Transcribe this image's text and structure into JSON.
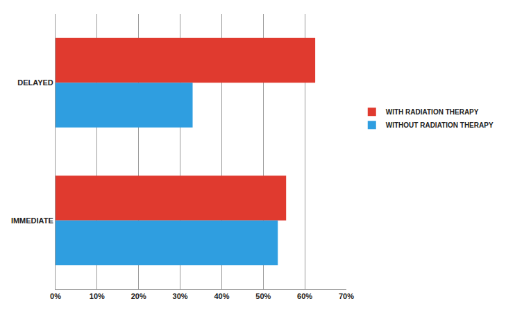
{
  "chart_data": {
    "type": "bar",
    "orientation": "horizontal",
    "categories": [
      "DELAYED",
      "IMMEDIATE"
    ],
    "series": [
      {
        "name": "WITH RADIATION THERAPY",
        "color": "#e03a2f",
        "values": [
          62.5,
          55.5
        ]
      },
      {
        "name": "WITHOUT RADIATION THERAPY",
        "color": "#2f9ee0",
        "values": [
          33,
          53.5
        ]
      }
    ],
    "xlim": [
      0,
      70
    ],
    "xticks": [
      {
        "value": 0,
        "label": "0%"
      },
      {
        "value": 10,
        "label": "10%"
      },
      {
        "value": 20,
        "label": "20%"
      },
      {
        "value": 30,
        "label": "30%"
      },
      {
        "value": 40,
        "label": "40%"
      },
      {
        "value": 50,
        "label": "50%"
      },
      {
        "value": 60,
        "label": "60%"
      },
      {
        "value": 70,
        "label": "70%"
      }
    ],
    "grid": true,
    "legend": "right"
  }
}
